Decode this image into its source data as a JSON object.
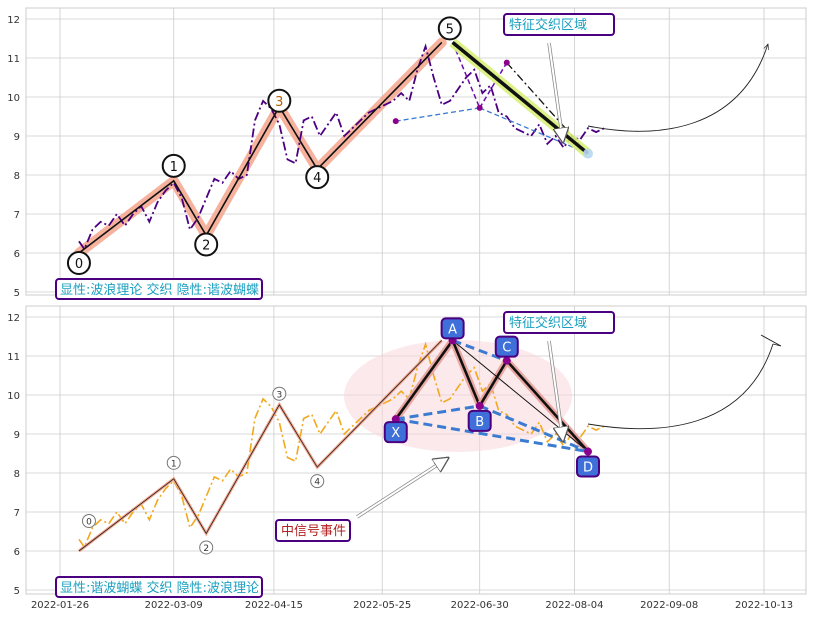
{
  "chart_data": [
    {
      "type": "line",
      "y_ticks": [
        5,
        6,
        7,
        8,
        9,
        10,
        11,
        12
      ],
      "ylim": [
        4.9,
        12.3
      ],
      "grid": true,
      "price_series": {
        "x": [
          "2022-02-02",
          "2022-02-04",
          "2022-02-07",
          "2022-02-10",
          "2022-02-13",
          "2022-02-16",
          "2022-02-19",
          "2022-02-22",
          "2022-02-25",
          "2022-02-28",
          "2022-03-03",
          "2022-03-06",
          "2022-03-09",
          "2022-03-12",
          "2022-03-15",
          "2022-03-18",
          "2022-03-21",
          "2022-03-24",
          "2022-03-27",
          "2022-03-30",
          "2022-04-02",
          "2022-04-05",
          "2022-04-08",
          "2022-04-11",
          "2022-04-14",
          "2022-04-17",
          "2022-04-20",
          "2022-04-23",
          "2022-04-26",
          "2022-04-29",
          "2022-05-02",
          "2022-05-05",
          "2022-05-08",
          "2022-05-11",
          "2022-05-14",
          "2022-05-17",
          "2022-05-20",
          "2022-05-23",
          "2022-05-26",
          "2022-05-29",
          "2022-06-01",
          "2022-06-04",
          "2022-06-07",
          "2022-06-10",
          "2022-06-13",
          "2022-06-16",
          "2022-06-19",
          "2022-06-22",
          "2022-06-25",
          "2022-06-28",
          "2022-07-01",
          "2022-07-04",
          "2022-07-07",
          "2022-07-10",
          "2022-07-13",
          "2022-07-16",
          "2022-07-19",
          "2022-07-22",
          "2022-07-25",
          "2022-07-28",
          "2022-07-31",
          "2022-08-03",
          "2022-08-06",
          "2022-08-09",
          "2022-08-12",
          "2022-08-15"
        ],
        "values": [
          6.3,
          6.1,
          6.6,
          6.8,
          6.7,
          7.0,
          6.7,
          7.0,
          7.2,
          6.8,
          7.3,
          7.6,
          7.8,
          7.4,
          6.6,
          6.9,
          7.4,
          7.9,
          7.8,
          8.1,
          7.9,
          8.0,
          9.4,
          9.9,
          9.7,
          9.3,
          8.4,
          8.3,
          9.4,
          9.5,
          9.0,
          9.3,
          9.6,
          9.0,
          9.2,
          9.4,
          9.6,
          9.7,
          9.8,
          9.9,
          10.1,
          9.9,
          10.7,
          11.3,
          10.5,
          9.8,
          9.9,
          10.2,
          10.5,
          10.7,
          10.1,
          10.3,
          9.6,
          9.5,
          9.2,
          9.1,
          9.0,
          9.3,
          8.8,
          9.0,
          8.7,
          9.0,
          8.9,
          9.2,
          9.1,
          9.2
        ]
      },
      "wave_points": [
        {
          "label": "0",
          "x": "2022-02-02",
          "y": 6.0
        },
        {
          "label": "1",
          "x": "2022-03-09",
          "y": 7.85
        },
        {
          "label": "2",
          "x": "2022-03-21",
          "y": 6.45
        },
        {
          "label": "3",
          "x": "2022-04-17",
          "y": 9.75
        },
        {
          "label": "4",
          "x": "2022-05-01",
          "y": 8.15
        },
        {
          "label": "5",
          "x": "2022-06-16",
          "y": 11.4
        }
      ],
      "butterfly_points": [
        {
          "label": "X",
          "x": "2022-05-30",
          "y": 9.38
        },
        {
          "label": "A",
          "x": "2022-06-20",
          "y": 11.4
        },
        {
          "label": "B",
          "x": "2022-06-30",
          "y": 9.72
        },
        {
          "label": "C",
          "x": "2022-07-10",
          "y": 10.88
        },
        {
          "label": "D",
          "x": "2022-08-09",
          "y": 8.55
        }
      ],
      "info_box": "显性:波浪理论 交织 隐性:谐波蝴蝶",
      "annotation": "特征交织区域"
    },
    {
      "type": "line",
      "y_ticks": [
        5,
        6,
        7,
        8,
        9,
        10,
        11,
        12
      ],
      "x_ticks": [
        "2022-01-26",
        "2022-03-09",
        "2022-04-15",
        "2022-05-25",
        "2022-06-30",
        "2022-08-04",
        "2022-09-08",
        "2022-10-13"
      ],
      "ylim": [
        4.9,
        12.3
      ],
      "grid": true,
      "info_box": "显性:谐波蝴蝶 交织 隐性:波浪理论",
      "annotation": "特征交织区域",
      "event_label": "中信号事件"
    }
  ],
  "colors": {
    "price_top": "#4b0082",
    "price_bottom": "#f2a81d",
    "wave_band": "#f4a58c",
    "butterfly_fill": "#f7d7dc",
    "node_fill": "#3f6fd8",
    "node_border": "#4b0082",
    "dashed_blue": "#3b7bd1",
    "annotation_text": "#1aa0c0",
    "event_text": "#b22222",
    "box_border": "#4b0082",
    "grid": "#cccccc"
  }
}
